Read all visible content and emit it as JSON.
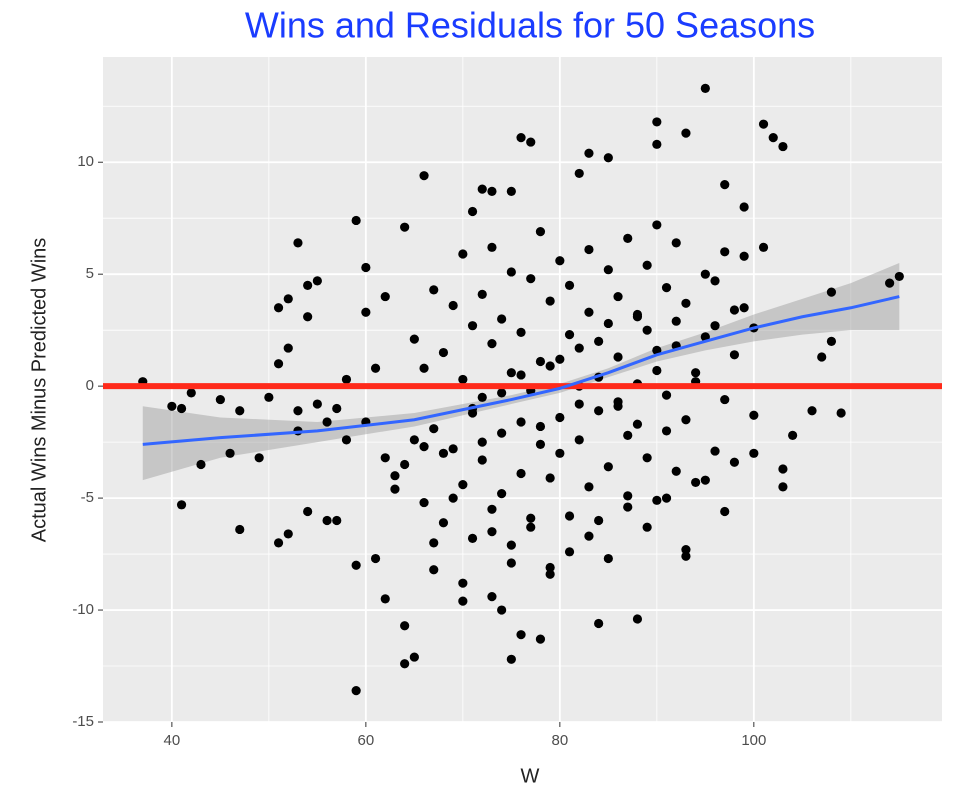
{
  "chart_data": {
    "type": "scatter",
    "title": "Wins and Residuals for 50 Seasons",
    "title_color": "#1a3cff",
    "xlabel": "W",
    "ylabel": "Actual Wins Minus Predicted Wins",
    "xlim": [
      32.9,
      119.4
    ],
    "ylim": [
      -15,
      14.7
    ],
    "xticks": [
      40,
      60,
      80,
      100
    ],
    "yticks": [
      -15,
      -10,
      -5,
      0,
      5,
      10
    ],
    "xminor": [
      50,
      70,
      90,
      110
    ],
    "yminor": [
      -12.5,
      -7.5,
      -2.5,
      2.5,
      7.5,
      12.5
    ],
    "grid": true,
    "point_color": "#000000",
    "x": [
      37,
      40,
      41,
      41,
      42,
      43,
      45,
      46,
      47,
      47,
      49,
      50,
      51,
      51,
      51,
      52,
      52,
      52,
      53,
      53,
      53,
      54,
      54,
      55,
      54,
      56,
      57,
      58,
      59,
      59,
      59,
      60,
      60,
      61,
      62,
      62,
      64,
      64,
      64,
      65,
      66,
      67,
      70,
      71,
      72,
      73,
      73,
      74,
      75,
      75,
      76,
      76,
      77,
      78,
      79,
      82,
      83,
      84,
      85,
      88,
      90,
      90,
      93,
      93,
      93,
      95,
      97,
      99,
      101,
      102,
      103,
      103,
      103,
      104,
      106,
      107,
      108,
      108,
      109,
      114,
      115,
      100,
      101,
      64,
      65,
      66,
      66,
      67,
      67,
      68,
      68,
      69,
      69,
      70,
      70,
      70,
      71,
      71,
      71,
      72,
      72,
      72,
      73,
      73,
      73,
      74,
      74,
      74,
      75,
      75,
      75,
      76,
      76,
      76,
      77,
      77,
      77,
      78,
      78,
      78,
      79,
      79,
      79,
      80,
      80,
      80,
      81,
      81,
      81,
      82,
      82,
      82,
      83,
      83,
      83,
      84,
      84,
      84,
      85,
      85,
      85,
      86,
      86,
      86,
      87,
      87,
      87,
      88,
      88,
      88,
      89,
      89,
      89,
      90,
      90,
      90,
      91,
      91,
      91,
      92,
      92,
      92,
      93,
      93,
      94,
      94,
      95,
      95,
      96,
      96,
      97,
      97,
      98,
      98,
      99,
      99,
      100,
      100,
      62,
      63,
      65,
      68,
      69,
      71,
      72,
      74,
      76,
      78,
      80,
      82,
      84,
      86,
      88,
      90,
      92,
      94,
      96,
      98,
      60,
      61,
      63,
      66,
      67,
      70,
      73,
      75,
      77,
      79,
      81,
      83,
      85,
      87,
      89,
      91,
      95,
      97,
      58,
      57,
      56,
      55
    ],
    "y": [
      0.2,
      -0.9,
      -1.0,
      -5.3,
      -0.3,
      -3.5,
      -0.6,
      -3.0,
      -1.1,
      -6.4,
      -3.2,
      -0.5,
      3.5,
      -7.0,
      1.0,
      -6.6,
      1.7,
      3.9,
      6.4,
      -2.0,
      -1.1,
      4.5,
      3.1,
      4.7,
      -5.6,
      -6.0,
      -6.0,
      -2.4,
      7.4,
      -13.6,
      -8.0,
      3.3,
      5.3,
      -7.7,
      4.0,
      -9.5,
      7.1,
      -10.7,
      -12.4,
      -12.1,
      9.4,
      -8.2,
      -9.6,
      7.8,
      8.8,
      8.7,
      -9.4,
      -10.0,
      -12.2,
      8.7,
      11.1,
      -11.1,
      10.9,
      -11.3,
      -8.1,
      9.5,
      10.4,
      -10.6,
      10.2,
      -10.4,
      11.8,
      10.8,
      11.3,
      -7.3,
      -7.6,
      13.3,
      9.0,
      8.0,
      11.7,
      11.1,
      10.7,
      -3.7,
      -4.5,
      -2.2,
      -1.1,
      1.3,
      4.2,
      2.0,
      -1.2,
      4.6,
      4.9,
      -3.0,
      6.2,
      -3.5,
      2.1,
      -5.2,
      0.8,
      -1.9,
      4.3,
      -6.1,
      1.5,
      -2.8,
      3.6,
      -4.4,
      0.3,
      5.9,
      -1.2,
      2.7,
      -6.8,
      -0.5,
      4.1,
      -3.3,
      1.9,
      -5.5,
      6.2,
      -2.1,
      3.0,
      -4.8,
      0.6,
      -7.1,
      5.1,
      -1.6,
      2.4,
      -3.9,
      4.8,
      -0.2,
      -6.3,
      1.1,
      6.9,
      -2.6,
      3.8,
      -4.1,
      0.9,
      -1.4,
      5.6,
      -3.0,
      2.3,
      -5.8,
      4.5,
      -0.8,
      1.7,
      -2.4,
      6.1,
      -4.5,
      3.3,
      -1.1,
      0.4,
      -6.0,
      2.8,
      5.2,
      -3.6,
      1.3,
      -0.9,
      4.0,
      -2.2,
      6.6,
      -4.9,
      0.1,
      3.1,
      -1.7,
      5.4,
      -3.2,
      2.5,
      -5.1,
      7.2,
      0.7,
      -2.0,
      4.4,
      -0.4,
      1.8,
      -3.8,
      6.4,
      -1.5,
      3.7,
      0.2,
      -4.3,
      5.0,
      2.2,
      -2.9,
      4.7,
      -0.6,
      6.0,
      1.4,
      -3.4,
      3.5,
      5.8,
      -1.3,
      2.6,
      -3.2,
      -4.0,
      -2.4,
      -3.0,
      -5.0,
      -1.0,
      -2.5,
      -0.3,
      0.5,
      -1.8,
      1.2,
      0.0,
      2.0,
      -0.7,
      3.2,
      1.6,
      2.9,
      0.6,
      2.7,
      3.4,
      -1.6,
      0.8,
      -4.6,
      -2.7,
      -7.0,
      -8.8,
      -6.5,
      -7.9,
      -5.9,
      -8.4,
      -7.4,
      -6.7,
      -7.7,
      -5.4,
      -6.3,
      -5.0,
      -4.2,
      -5.6,
      0.3,
      -1.0,
      -1.6,
      -0.8
    ],
    "smooth": {
      "color": "#3366ff",
      "band_color": "#999999",
      "x": [
        37,
        45,
        55,
        65,
        75,
        80,
        85,
        90,
        95,
        100,
        105,
        110,
        115
      ],
      "y": [
        -2.6,
        -2.3,
        -2.0,
        -1.5,
        -0.6,
        -0.1,
        0.6,
        1.4,
        2.0,
        2.6,
        3.1,
        3.5,
        4.0
      ],
      "lower": [
        -4.2,
        -3.2,
        -2.5,
        -1.8,
        -0.8,
        -0.3,
        0.4,
        1.1,
        1.6,
        2.0,
        2.3,
        2.5,
        2.5
      ],
      "upper": [
        -0.9,
        -1.4,
        -1.6,
        -1.2,
        -0.4,
        0.1,
        0.8,
        1.7,
        2.4,
        3.2,
        3.9,
        4.6,
        5.5
      ]
    },
    "hline": {
      "y": 0,
      "color": "#ff2a1a"
    }
  }
}
